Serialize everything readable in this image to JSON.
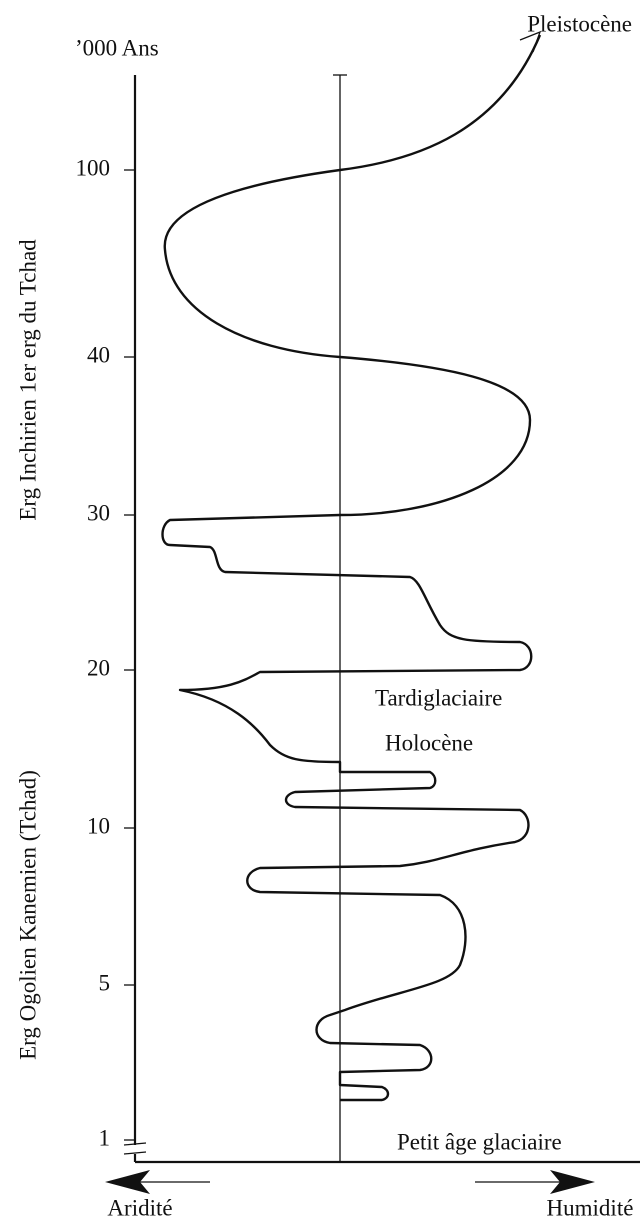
{
  "header": {
    "unit": "’000 Ans",
    "top_label": "Pleistocène"
  },
  "axis": {
    "ticks": [
      100,
      40,
      30,
      20,
      10,
      5,
      1
    ]
  },
  "side_labels": [
    "Erg Inchirien 1er erg du Tchad",
    "Erg Ogolien Kanemien (Tchad)"
  ],
  "annotations": [
    "Tardiglaciaire",
    "Holocène",
    "Petit âge glaciaire"
  ],
  "footer": {
    "left": "Aridité",
    "right": "Humidité"
  }
}
